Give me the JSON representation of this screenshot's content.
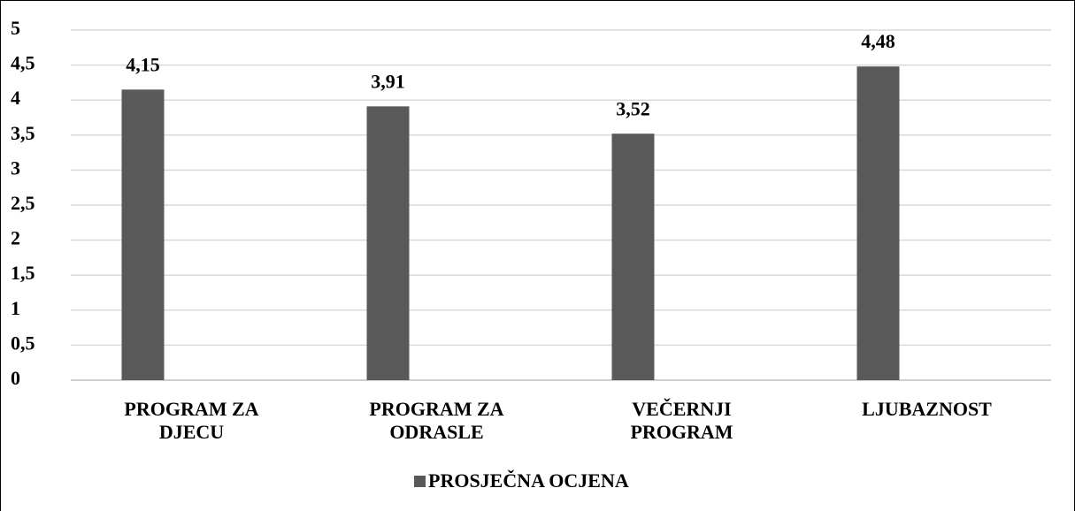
{
  "chart_data": {
    "type": "bar",
    "categories": [
      "PROGRAM ZA DJECU",
      "PROGRAM ZA ODRASLE",
      "VEČERNJI PROGRAM",
      "LJUBAZNOST"
    ],
    "series": [
      {
        "name": "PROSJEČNA OCJENA",
        "color": "#595959",
        "values": [
          4.15,
          3.91,
          3.52,
          4.48
        ],
        "value_labels": [
          "4,15",
          "3,91",
          "3,52",
          "4,48"
        ]
      }
    ],
    "ylim": [
      0,
      5
    ],
    "yticks": [
      0,
      {
        "value": 0.5,
        "label": "0,5"
      },
      1,
      {
        "value": 1.5,
        "label": "1,5"
      },
      2,
      {
        "value": 2.5,
        "label": "2,5"
      },
      3,
      {
        "value": 3.5,
        "label": "3,5"
      },
      4,
      {
        "value": 4.5,
        "label": "4,5"
      },
      5
    ],
    "grid": true,
    "legend": "bottom"
  }
}
